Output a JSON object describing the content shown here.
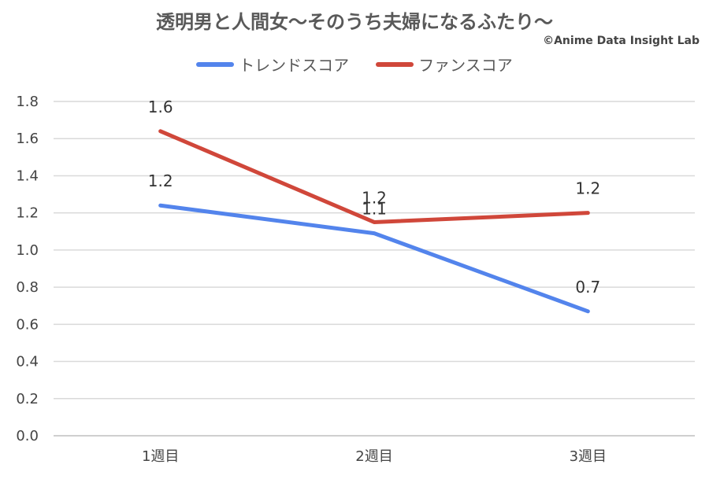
{
  "chart_data": {
    "type": "line",
    "title": "透明男と人間女〜そのうち夫婦になるふたり〜",
    "categories": [
      "1週目",
      "2週目",
      "3週目"
    ],
    "series": [
      {
        "name": "トレンドスコア",
        "color": "#5384EC",
        "values": [
          1.24,
          1.09,
          0.67
        ],
        "labels": [
          "1.2",
          "1.1",
          "0.7"
        ]
      },
      {
        "name": "ファンスコア",
        "color": "#D0473A",
        "values": [
          1.64,
          1.15,
          1.2
        ],
        "labels": [
          "1.6",
          "1.2",
          "1.2"
        ]
      }
    ],
    "y_ticks": [
      "0.0",
      "0.2",
      "0.4",
      "0.6",
      "0.8",
      "1.0",
      "1.2",
      "1.4",
      "1.6",
      "1.8"
    ],
    "ylim": [
      0,
      1.8
    ],
    "grid": true,
    "legend_position": "top"
  },
  "credit": "©Anime Data Insight Lab"
}
